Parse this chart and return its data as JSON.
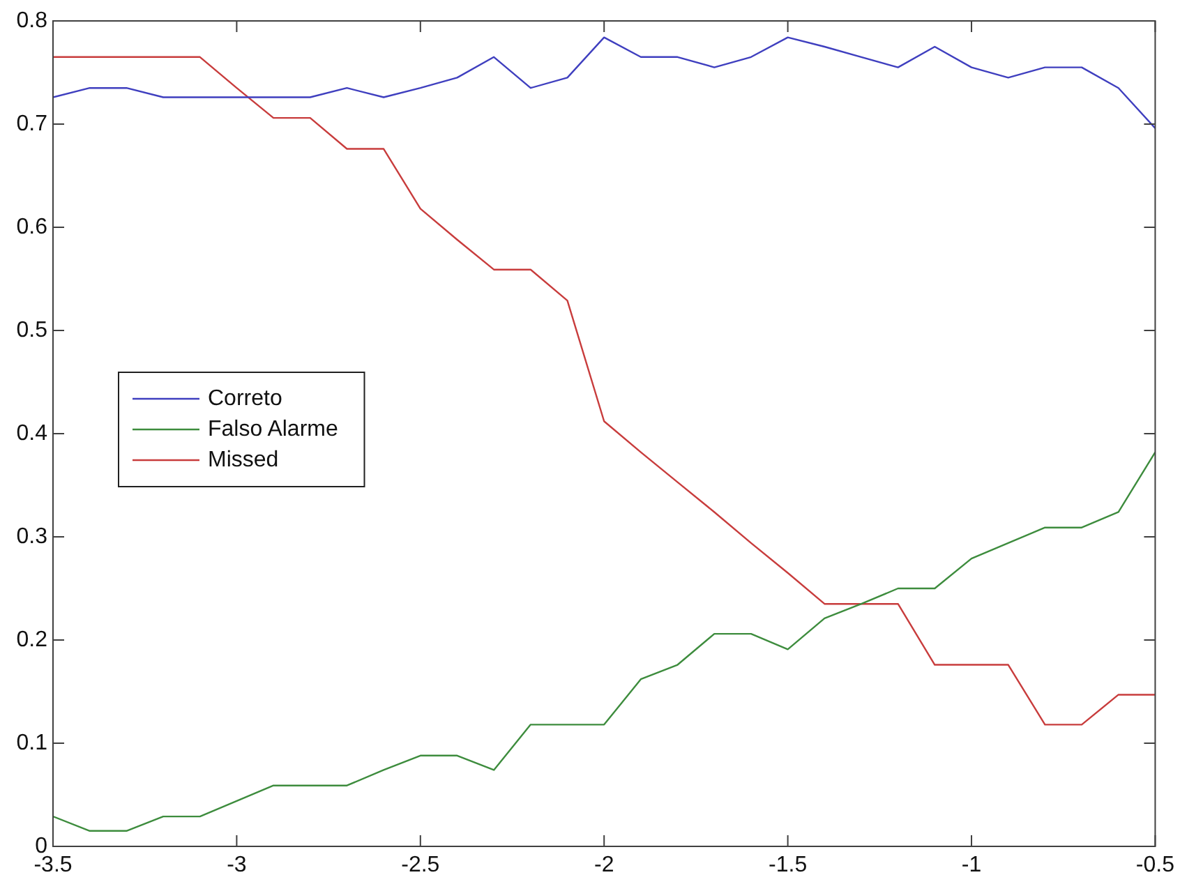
{
  "chart_data": {
    "type": "line",
    "x": [
      -3.5,
      -3.4,
      -3.3,
      -3.2,
      -3.1,
      -3.0,
      -2.9,
      -2.8,
      -2.7,
      -2.6,
      -2.5,
      -2.4,
      -2.3,
      -2.2,
      -2.1,
      -2.0,
      -1.9,
      -1.8,
      -1.7,
      -1.6,
      -1.5,
      -1.4,
      -1.3,
      -1.2,
      -1.1,
      -1.0,
      -0.9,
      -0.8,
      -0.7,
      -0.6,
      -0.5
    ],
    "series": [
      {
        "name": "Correto",
        "color": "#3f3fbf",
        "values": [
          0.726,
          0.735,
          0.735,
          0.726,
          0.726,
          0.726,
          0.726,
          0.726,
          0.735,
          0.726,
          0.735,
          0.745,
          0.765,
          0.735,
          0.745,
          0.784,
          0.765,
          0.765,
          0.755,
          0.765,
          0.784,
          0.775,
          0.765,
          0.755,
          0.775,
          0.755,
          0.745,
          0.755,
          0.755,
          0.735,
          0.696
        ]
      },
      {
        "name": "Falso Alarme",
        "color": "#3d8c3d",
        "values": [
          0.029,
          0.015,
          0.015,
          0.029,
          0.029,
          0.044,
          0.059,
          0.059,
          0.059,
          0.074,
          0.088,
          0.088,
          0.074,
          0.118,
          0.118,
          0.118,
          0.162,
          0.176,
          0.206,
          0.206,
          0.191,
          0.221,
          0.235,
          0.25,
          0.25,
          0.279,
          0.294,
          0.309,
          0.309,
          0.324,
          0.382
        ]
      },
      {
        "name": "Missed",
        "color": "#c83c3c",
        "values": [
          0.765,
          0.765,
          0.765,
          0.765,
          0.765,
          0.735,
          0.706,
          0.706,
          0.676,
          0.676,
          0.618,
          0.588,
          0.559,
          0.559,
          0.529,
          0.412,
          0.382,
          0.353,
          0.324,
          0.294,
          0.265,
          0.235,
          0.235,
          0.235,
          0.176,
          0.176,
          0.176,
          0.118,
          0.118,
          0.147,
          0.147
        ]
      }
    ],
    "xlim": [
      -3.5,
      -0.5
    ],
    "xticks": [
      -3.5,
      -3,
      -2.5,
      -2,
      -1.5,
      -1,
      -0.5
    ],
    "ylim": [
      0,
      0.8
    ],
    "yticks": [
      0,
      0.1,
      0.2,
      0.3,
      0.4,
      0.5,
      0.6,
      0.7,
      0.8
    ],
    "grid": false,
    "legend": "left",
    "marker": "none",
    "line_style": "solid"
  }
}
